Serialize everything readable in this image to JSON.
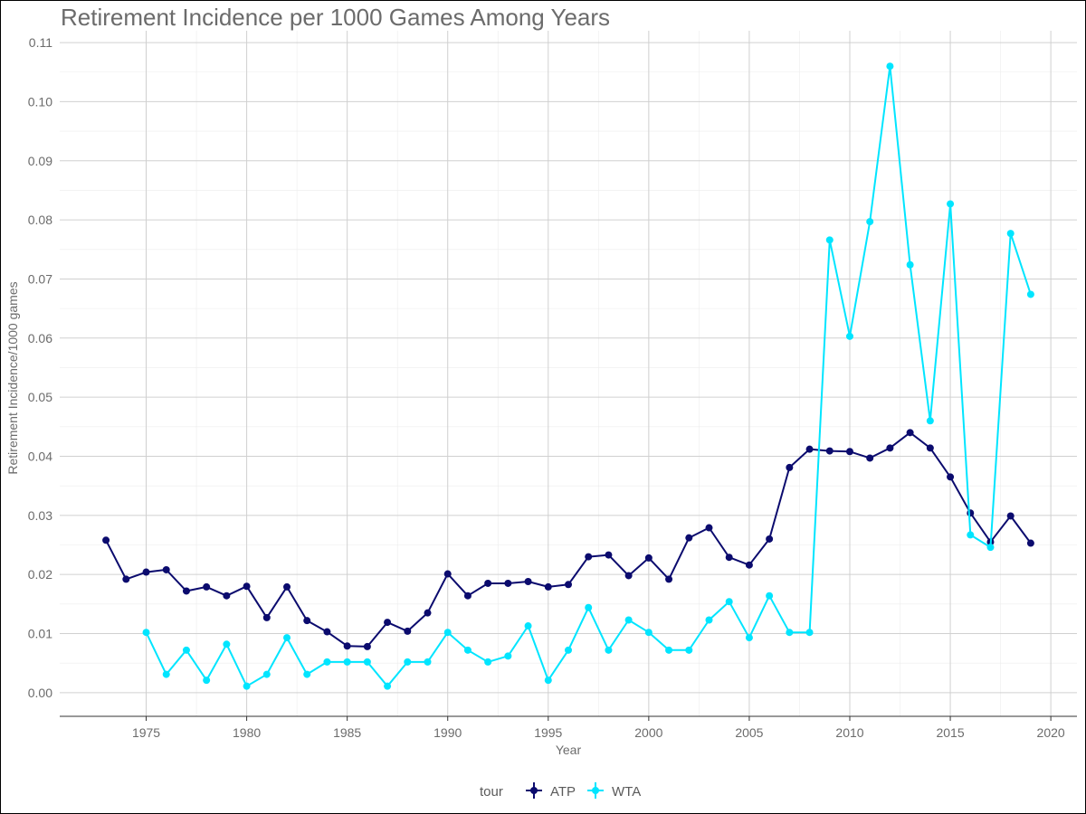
{
  "chart_data": {
    "type": "line",
    "title": "Retirement Incidence per 1000 Games Among Years",
    "xlabel": "Year",
    "ylabel": "Retirement Incidence/1000 games",
    "xlim": [
      1970.7,
      2021.3
    ],
    "ylim": [
      -0.004,
      0.112
    ],
    "x_ticks": [
      1975,
      1980,
      1985,
      1990,
      1995,
      2000,
      2005,
      2010,
      2015,
      2020
    ],
    "y_ticks": [
      "0.00",
      "0.01",
      "0.02",
      "0.03",
      "0.04",
      "0.05",
      "0.06",
      "0.07",
      "0.08",
      "0.09",
      "0.10",
      "0.11"
    ],
    "grid": true,
    "legend": {
      "title": "tour",
      "placement": "bottom"
    },
    "series": [
      {
        "name": "ATP",
        "color": "#0b0b6e",
        "x": [
          1973,
          1974,
          1975,
          1976,
          1977,
          1978,
          1979,
          1980,
          1981,
          1982,
          1983,
          1984,
          1985,
          1986,
          1987,
          1988,
          1989,
          1990,
          1991,
          1992,
          1993,
          1994,
          1995,
          1996,
          1997,
          1998,
          1999,
          2000,
          2001,
          2002,
          2003,
          2004,
          2005,
          2006,
          2007,
          2008,
          2009,
          2010,
          2011,
          2012,
          2013,
          2014,
          2015,
          2016,
          2017,
          2018,
          2019
        ],
        "values": [
          0.0258,
          0.0192,
          0.0204,
          0.0208,
          0.0172,
          0.0179,
          0.0164,
          0.018,
          0.0127,
          0.0179,
          0.0122,
          0.0103,
          0.0079,
          0.0078,
          0.0119,
          0.0104,
          0.0135,
          0.0201,
          0.0164,
          0.0185,
          0.0185,
          0.0188,
          0.0179,
          0.0183,
          0.023,
          0.0233,
          0.0198,
          0.0228,
          0.0192,
          0.0262,
          0.0279,
          0.0229,
          0.0216,
          0.026,
          0.0381,
          0.0412,
          0.0409,
          0.0408,
          0.0397,
          0.0414,
          0.044,
          0.0414,
          0.0365,
          0.0304,
          0.0255,
          0.0299,
          0.0253
        ]
      },
      {
        "name": "WTA",
        "color": "#00e5ff",
        "x": [
          1975,
          1976,
          1977,
          1978,
          1979,
          1980,
          1981,
          1982,
          1983,
          1984,
          1985,
          1986,
          1987,
          1988,
          1989,
          1990,
          1991,
          1992,
          1993,
          1994,
          1995,
          1996,
          1997,
          1998,
          1999,
          2000,
          2001,
          2002,
          2003,
          2004,
          2005,
          2006,
          2007,
          2008,
          2009,
          2010,
          2011,
          2012,
          2013,
          2014,
          2015,
          2016,
          2017,
          2018,
          2019
        ],
        "values": [
          0.0102,
          0.0031,
          0.0072,
          0.0021,
          0.0082,
          0.0011,
          0.0031,
          0.0093,
          0.0031,
          0.0052,
          0.0052,
          0.0052,
          0.0011,
          0.0052,
          0.0052,
          0.0102,
          0.0072,
          0.0052,
          0.0062,
          0.0113,
          0.0021,
          0.0072,
          0.0144,
          0.0072,
          0.0123,
          0.0102,
          0.0072,
          0.0072,
          0.0123,
          0.0154,
          0.0093,
          0.0164,
          0.0102,
          0.0102,
          0.0766,
          0.0603,
          0.0797,
          0.106,
          0.0724,
          0.046,
          0.0827,
          0.0267,
          0.0246,
          0.0777,
          0.0674
        ]
      }
    ]
  }
}
